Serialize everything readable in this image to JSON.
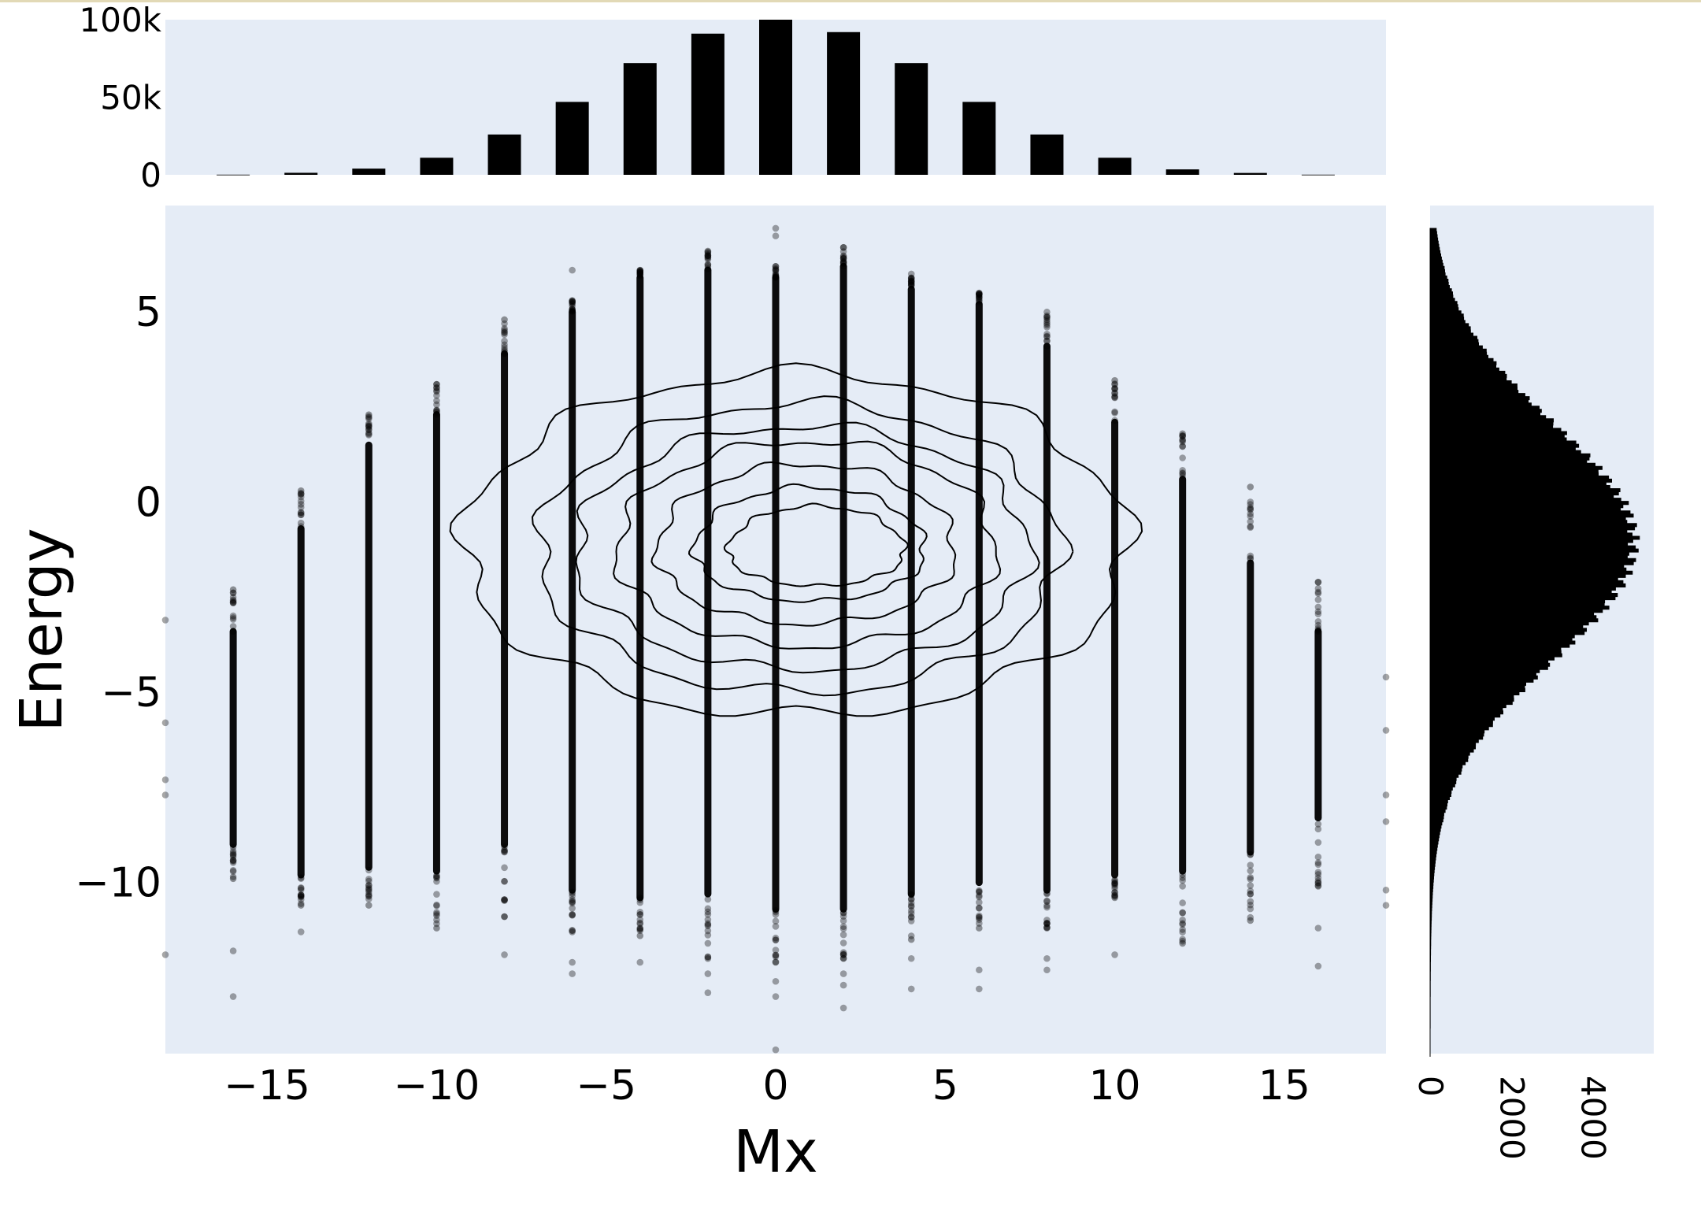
{
  "chart_data": {
    "type": "scatter",
    "marginal": {
      "top": "histogram",
      "right": "histogram"
    },
    "overlay": "density-contour",
    "xlabel": "Mx",
    "ylabel": "Energy",
    "xlim": [
      -18,
      18
    ],
    "ylim": [
      -14.5,
      7.8
    ],
    "x_ticks": [
      "−15",
      "−10",
      "−5",
      "0",
      "5",
      "10",
      "15"
    ],
    "x_tick_values": [
      -15,
      -10,
      -5,
      0,
      5,
      10,
      15
    ],
    "y_ticks": [
      "5",
      "0",
      "−5",
      "−10"
    ],
    "y_tick_values": [
      5,
      0,
      -5,
      -10
    ],
    "columns": [
      {
        "x": -16,
        "ymin": -9.9,
        "ymax": -2.3,
        "dense_min": -9.0,
        "dense_max": -3.4,
        "outliers": [
          -11.8,
          -13.0
        ]
      },
      {
        "x": -14,
        "ymin": -10.6,
        "ymax": 0.3,
        "dense_min": -9.8,
        "dense_max": -0.7,
        "outliers": [
          -11.3
        ]
      },
      {
        "x": -12,
        "ymin": -10.6,
        "ymax": 2.3,
        "dense_min": -9.6,
        "dense_max": 1.5,
        "outliers": []
      },
      {
        "x": -10,
        "ymin": -11.2,
        "ymax": 3.1,
        "dense_min": -9.7,
        "dense_max": 2.3,
        "outliers": []
      },
      {
        "x": -8,
        "ymin": -10.9,
        "ymax": 4.8,
        "dense_min": -9.0,
        "dense_max": 3.9,
        "outliers": [
          -11.9
        ]
      },
      {
        "x": -6,
        "ymin": -11.3,
        "ymax": 5.3,
        "dense_min": -10.2,
        "dense_max": 5.0,
        "outliers": [
          -12.1,
          -12.4,
          6.1
        ]
      },
      {
        "x": -4,
        "ymin": -11.4,
        "ymax": 6.1,
        "dense_min": -10.4,
        "dense_max": 5.9,
        "outliers": [
          -12.1
        ]
      },
      {
        "x": -2,
        "ymin": -12.0,
        "ymax": 6.6,
        "dense_min": -10.3,
        "dense_max": 6.1,
        "outliers": [
          -12.9,
          -12.4
        ]
      },
      {
        "x": 0,
        "ymin": -12.1,
        "ymax": 6.2,
        "dense_min": -10.7,
        "dense_max": 5.9,
        "outliers": [
          -12.6,
          -13.0,
          7.2,
          7.0,
          -14.4
        ]
      },
      {
        "x": 2,
        "ymin": -12.0,
        "ymax": 6.7,
        "dense_min": -10.7,
        "dense_max": 6.2,
        "outliers": [
          -12.4,
          -12.7,
          -13.3
        ]
      },
      {
        "x": 4,
        "ymin": -11.5,
        "ymax": 5.9,
        "dense_min": -10.3,
        "dense_max": 5.6,
        "outliers": [
          -12.0,
          -12.8,
          6.0
        ]
      },
      {
        "x": 6,
        "ymin": -11.2,
        "ymax": 5.5,
        "dense_min": -10.0,
        "dense_max": 5.2,
        "outliers": [
          -12.3,
          -12.8
        ]
      },
      {
        "x": 8,
        "ymin": -11.2,
        "ymax": 4.9,
        "dense_min": -10.2,
        "dense_max": 4.1,
        "outliers": [
          -12.0,
          -12.3,
          5.0
        ]
      },
      {
        "x": 10,
        "ymin": -10.4,
        "ymax": 3.2,
        "dense_min": -9.8,
        "dense_max": 2.1,
        "outliers": [
          -11.9
        ]
      },
      {
        "x": 12,
        "ymin": -11.6,
        "ymax": 1.8,
        "dense_min": -9.7,
        "dense_max": 0.6,
        "outliers": [
          -10.8
        ]
      },
      {
        "x": 14,
        "ymin": -11.0,
        "ymax": 0.4,
        "dense_min": -9.2,
        "dense_max": -1.6,
        "outliers": [
          -10.5
        ]
      },
      {
        "x": 16,
        "ymin": -10.1,
        "ymax": -2.1,
        "dense_min": -8.3,
        "dense_max": -3.4,
        "outliers": [
          -11.2,
          -12.2
        ]
      }
    ],
    "edge_points": [
      {
        "x": -18,
        "y": -3.1
      },
      {
        "x": -18,
        "y": -5.8
      },
      {
        "x": -18,
        "y": -7.3
      },
      {
        "x": -18,
        "y": -7.7
      },
      {
        "x": -18,
        "y": -11.9
      },
      {
        "x": 18,
        "y": -4.6
      },
      {
        "x": 18,
        "y": -6.0
      },
      {
        "x": 18,
        "y": -7.7
      },
      {
        "x": 18,
        "y": -8.4
      },
      {
        "x": 18,
        "y": -10.2
      },
      {
        "x": 18,
        "y": -10.6
      }
    ],
    "contours": [
      {
        "cx": 0.6,
        "cy": -1.2,
        "rx": 9.8,
        "ry_top": 4.6,
        "ry_bottom": 4.4
      },
      {
        "cx": 0.7,
        "cy": -1.3,
        "rx": 7.7,
        "ry_top": 3.9,
        "ry_bottom": 3.7
      },
      {
        "cx": 0.8,
        "cy": -1.3,
        "rx": 6.7,
        "ry_top": 3.3,
        "ry_bottom": 3.1
      },
      {
        "cx": 0.9,
        "cy": -1.3,
        "rx": 5.6,
        "ry_top": 2.9,
        "ry_bottom": 2.5
      },
      {
        "cx": 0.9,
        "cy": -1.3,
        "rx": 4.4,
        "ry_top": 2.3,
        "ry_bottom": 1.9
      },
      {
        "cx": 1.0,
        "cy": -1.3,
        "rx": 3.4,
        "ry_top": 1.7,
        "ry_bottom": 1.3
      },
      {
        "cx": 1.2,
        "cy": -1.3,
        "rx": 2.6,
        "ry_top": 1.2,
        "ry_bottom": 0.9
      }
    ],
    "top_histogram": {
      "categories": [
        -16,
        -14,
        -12,
        -10,
        -8,
        -6,
        -4,
        -2,
        0,
        2,
        4,
        6,
        8,
        10,
        12,
        14,
        16
      ],
      "values": [
        100,
        1300,
        4000,
        11000,
        26000,
        47000,
        72000,
        91000,
        100000,
        92000,
        72000,
        47000,
        26000,
        11000,
        3500,
        1200,
        100
      ],
      "ylim": [
        0,
        100000
      ],
      "ticks": [
        "100k",
        "50k",
        "0"
      ],
      "tick_values": [
        100000,
        50000,
        0
      ]
    },
    "right_histogram": {
      "orientation": "horizontal",
      "ticks": [
        "0",
        "2000",
        "4000"
      ],
      "tick_values": [
        0,
        2000,
        4000
      ],
      "xlim": [
        0,
        5500
      ],
      "peak_energy": -1.0,
      "peak_count": 5000,
      "sigma": 3.1,
      "ymin": -14.5,
      "ymax": 7.2
    },
    "colors": {
      "plot_background": "#e5ecf6",
      "marks": "#000000",
      "page_background": "#ffffff"
    }
  }
}
